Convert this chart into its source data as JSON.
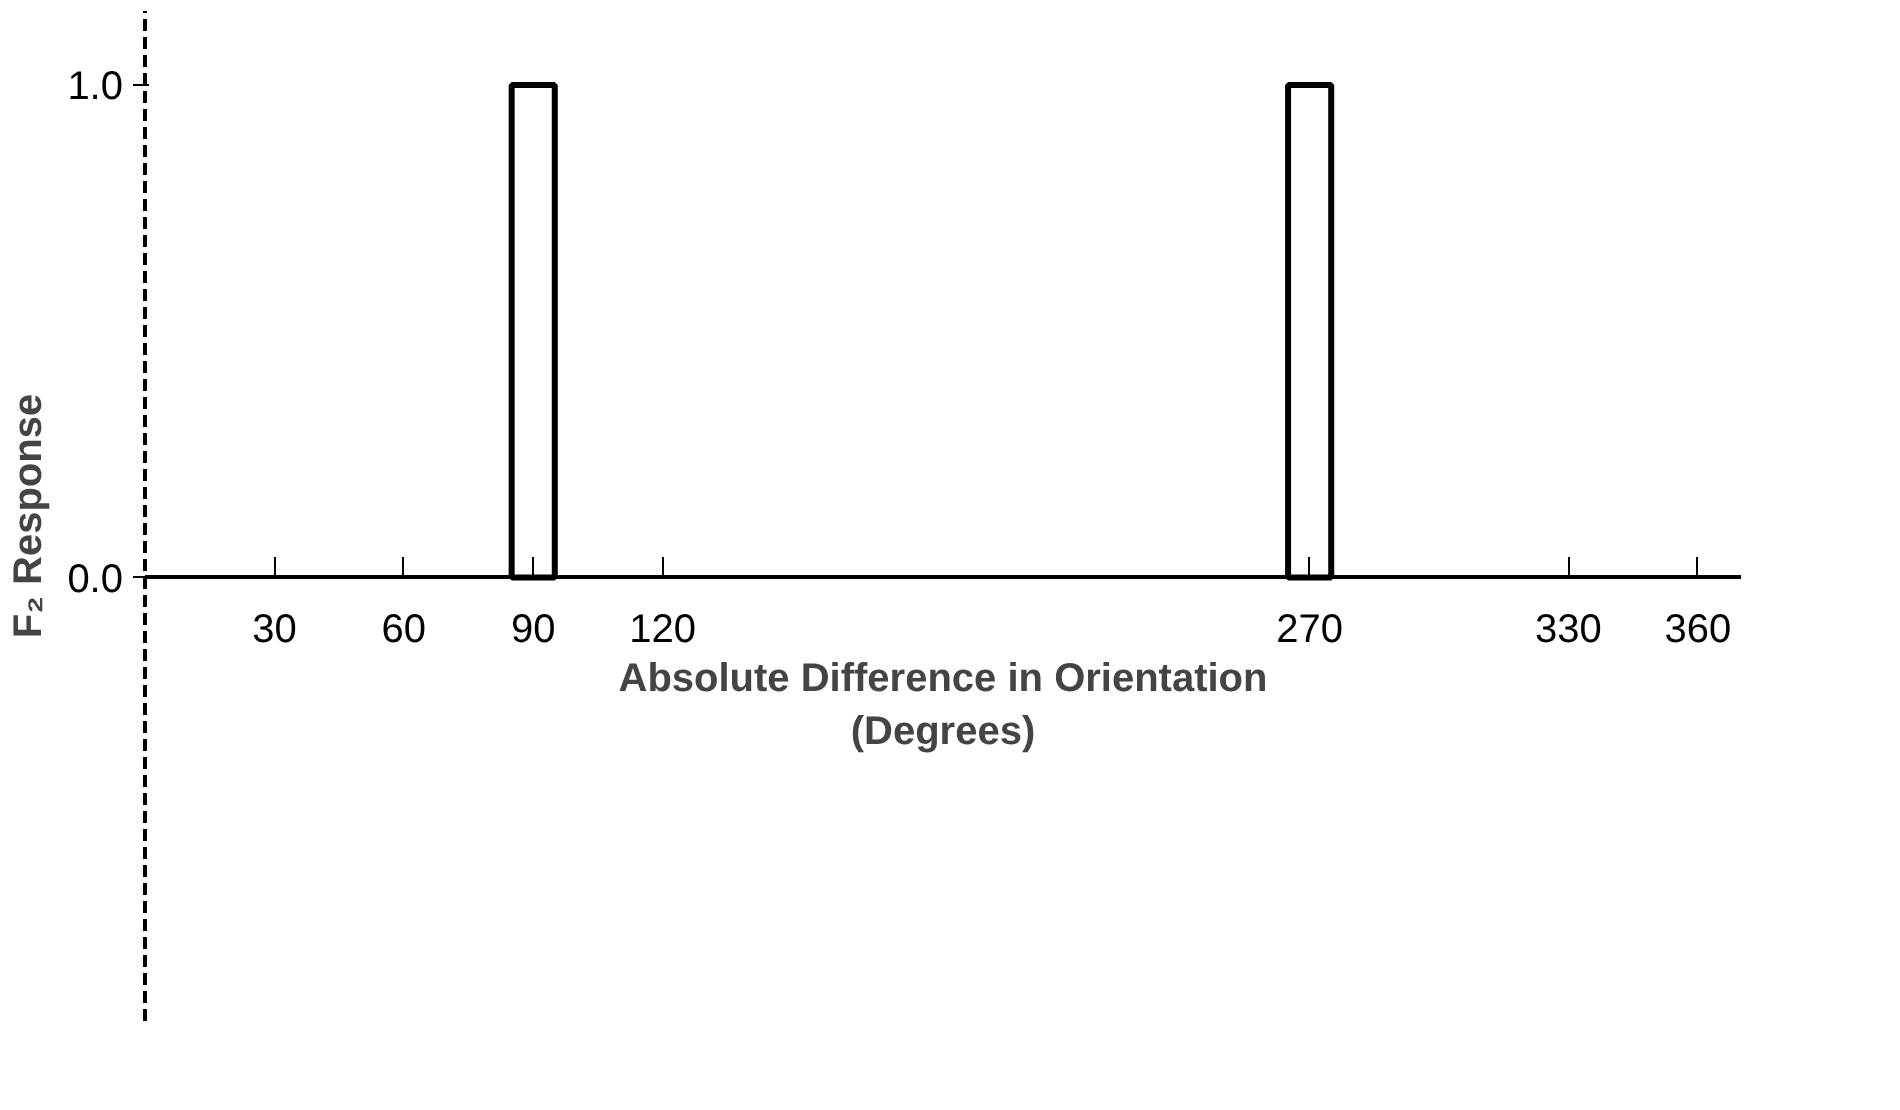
{
  "chart_data": {
    "type": "bar",
    "xlabel": "Absolute Difference in Orientation\n(Degrees)",
    "ylabel": "F₂ Response",
    "x": [
      90,
      270
    ],
    "values": [
      1.0,
      1.0
    ],
    "color": "#000000",
    "xlim": [
      0,
      370
    ],
    "xticks": [
      30,
      60,
      90,
      120,
      270,
      330,
      360
    ],
    "ylim": [
      -0.9,
      1.15
    ],
    "yticks": [
      {
        "value": 0,
        "label": "0.0"
      },
      {
        "value": 1,
        "label": "1.0"
      }
    ],
    "grid": false
  }
}
